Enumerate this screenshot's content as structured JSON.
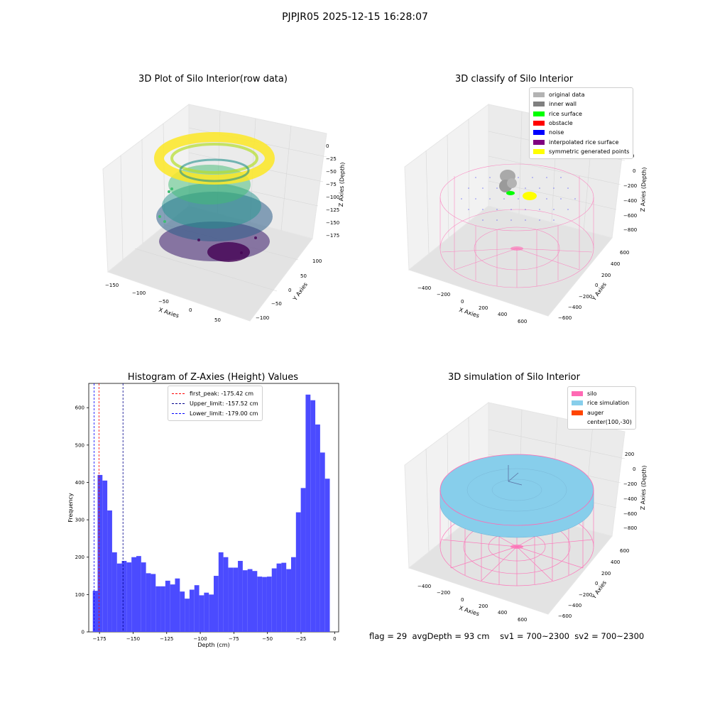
{
  "page_title": "PJPJR05 2025-12-15 16:28:07",
  "panels": {
    "raw": {
      "title": "3D Plot of Silo Interior(row data)",
      "xlabel": "X Axies",
      "ylabel": "Y Axies",
      "zlabel": "Z Axies (Depth)",
      "xticks": [
        "−150",
        "−100",
        "−50",
        "0",
        "50"
      ],
      "yticks": [
        "100",
        "50",
        "0",
        "−50",
        "−100"
      ],
      "zticks": [
        "0",
        "−25",
        "−50",
        "−75",
        "−100",
        "−125",
        "−150",
        "−175"
      ]
    },
    "classify": {
      "title": "3D classify of Silo Interior",
      "xlabel": "X Axies",
      "ylabel": "Y Axies",
      "zlabel": "Z Axies (Depth)",
      "xticks": [
        "−400",
        "−200",
        "0",
        "200",
        "400",
        "600"
      ],
      "yticks": [
        "600",
        "400",
        "200",
        "0",
        "−200",
        "−400",
        "−600"
      ],
      "zticks": [
        "200",
        "0",
        "−200",
        "−400",
        "−600",
        "−800"
      ],
      "legend": [
        {
          "label": "original data",
          "color": "#b3b3b3"
        },
        {
          "label": "inner wall",
          "color": "#808080"
        },
        {
          "label": "rice surface",
          "color": "#00ff00"
        },
        {
          "label": "obstacle",
          "color": "#ff0000"
        },
        {
          "label": "noise",
          "color": "#0000ff"
        },
        {
          "label": "interpolated rice surface",
          "color": "#800080"
        },
        {
          "label": "symmetric generated points",
          "color": "#ffff00"
        }
      ]
    },
    "simulation": {
      "title": "3D simulation of Silo Interior",
      "xlabel": "X Axies",
      "ylabel": "Y Axies",
      "zlabel": "Z Axies (Depth)",
      "xticks": [
        "−400",
        "−200",
        "0",
        "200",
        "400",
        "600"
      ],
      "yticks": [
        "600",
        "400",
        "200",
        "0",
        "−200",
        "−400",
        "−600"
      ],
      "zticks": [
        "200",
        "0",
        "−200",
        "−400",
        "−600",
        "−800"
      ],
      "legend": [
        {
          "label": "silo",
          "color": "#ff69b4"
        },
        {
          "label": "rice simulation",
          "color": "#87ceeb"
        },
        {
          "label": "auger",
          "color": "#ff4500"
        },
        {
          "label": "center(100,-30)",
          "color": "#ffffff"
        }
      ]
    }
  },
  "footer": {
    "flag": "flag = 29",
    "avg_depth": "avgDepth = 93 cm",
    "sv1": "sv1 = 700~2300",
    "sv2": "sv2 = 700~2300"
  },
  "chart_data": [
    {
      "type": "scatter",
      "title": "3D Plot of Silo Interior(row data)",
      "xlabel": "X Axies",
      "ylabel": "Y Axies",
      "zlabel": "Z Axies (Depth)",
      "xlim": [
        -160,
        75
      ],
      "ylim": [
        -110,
        120
      ],
      "zlim": [
        -190,
        5
      ],
      "colormap": "viridis"
    },
    {
      "type": "scatter",
      "title": "3D classify of Silo Interior",
      "xlabel": "X Axies",
      "ylabel": "Y Axies",
      "zlabel": "Z Axies (Depth)",
      "xlim": [
        -500,
        700
      ],
      "ylim": [
        -700,
        700
      ],
      "zlim": [
        -900,
        300
      ],
      "series": [
        {
          "name": "original data",
          "color": "#b3b3b3"
        },
        {
          "name": "inner wall",
          "color": "#808080"
        },
        {
          "name": "rice surface",
          "color": "#00ff00"
        },
        {
          "name": "obstacle",
          "color": "#ff0000"
        },
        {
          "name": "noise",
          "color": "#0000ff"
        },
        {
          "name": "interpolated rice surface",
          "color": "#800080"
        },
        {
          "name": "symmetric generated points",
          "color": "#ffff00"
        }
      ]
    },
    {
      "type": "bar",
      "title": "Histogram of Z-Axies (Height) Values",
      "xlabel": "Depth (cm)",
      "ylabel": "Frequency",
      "xlim": [
        -183,
        3
      ],
      "ylim": [
        0,
        665
      ],
      "bin_start": -180,
      "bin_width": 3.6,
      "values": [
        110,
        420,
        405,
        325,
        213,
        183,
        190,
        186,
        200,
        203,
        186,
        157,
        155,
        122,
        122,
        137,
        127,
        143,
        108,
        89,
        113,
        125,
        98,
        105,
        100,
        150,
        213,
        200,
        172,
        172,
        190,
        165,
        168,
        163,
        148,
        147,
        148,
        170,
        183,
        185,
        168,
        200,
        320,
        385,
        635,
        620,
        555,
        480,
        410
      ],
      "xticks": [
        -175,
        -150,
        -125,
        -100,
        -75,
        -50,
        -25,
        0
      ],
      "xtick_labels": [
        "−175",
        "−150",
        "−125",
        "−100",
        "−75",
        "−50",
        "−25",
        "0"
      ],
      "yticks": [
        0,
        100,
        200,
        300,
        400,
        500,
        600
      ],
      "bar_color": "#4b4bff",
      "vlines": [
        {
          "label": "first_peak: -175.42 cm",
          "x": -175.42,
          "color": "#ff0000"
        },
        {
          "label": "Upper_limit: -157.52 cm",
          "x": -157.52,
          "color": "#00008b"
        },
        {
          "label": "Lower_limit: -179.00 cm",
          "x": -179.0,
          "color": "#0000ff"
        }
      ]
    },
    {
      "type": "scatter",
      "title": "3D simulation of Silo Interior",
      "xlabel": "X Axies",
      "ylabel": "Y Axies",
      "zlabel": "Z Axies (Depth)",
      "xlim": [
        -500,
        700
      ],
      "ylim": [
        -700,
        700
      ],
      "zlim": [
        -900,
        300
      ],
      "series": [
        {
          "name": "silo",
          "color": "#ff69b4"
        },
        {
          "name": "rice simulation",
          "color": "#87ceeb"
        },
        {
          "name": "auger",
          "color": "#ff4500"
        },
        {
          "name": "center(100,-30)",
          "color": "#ffffff"
        }
      ]
    }
  ]
}
